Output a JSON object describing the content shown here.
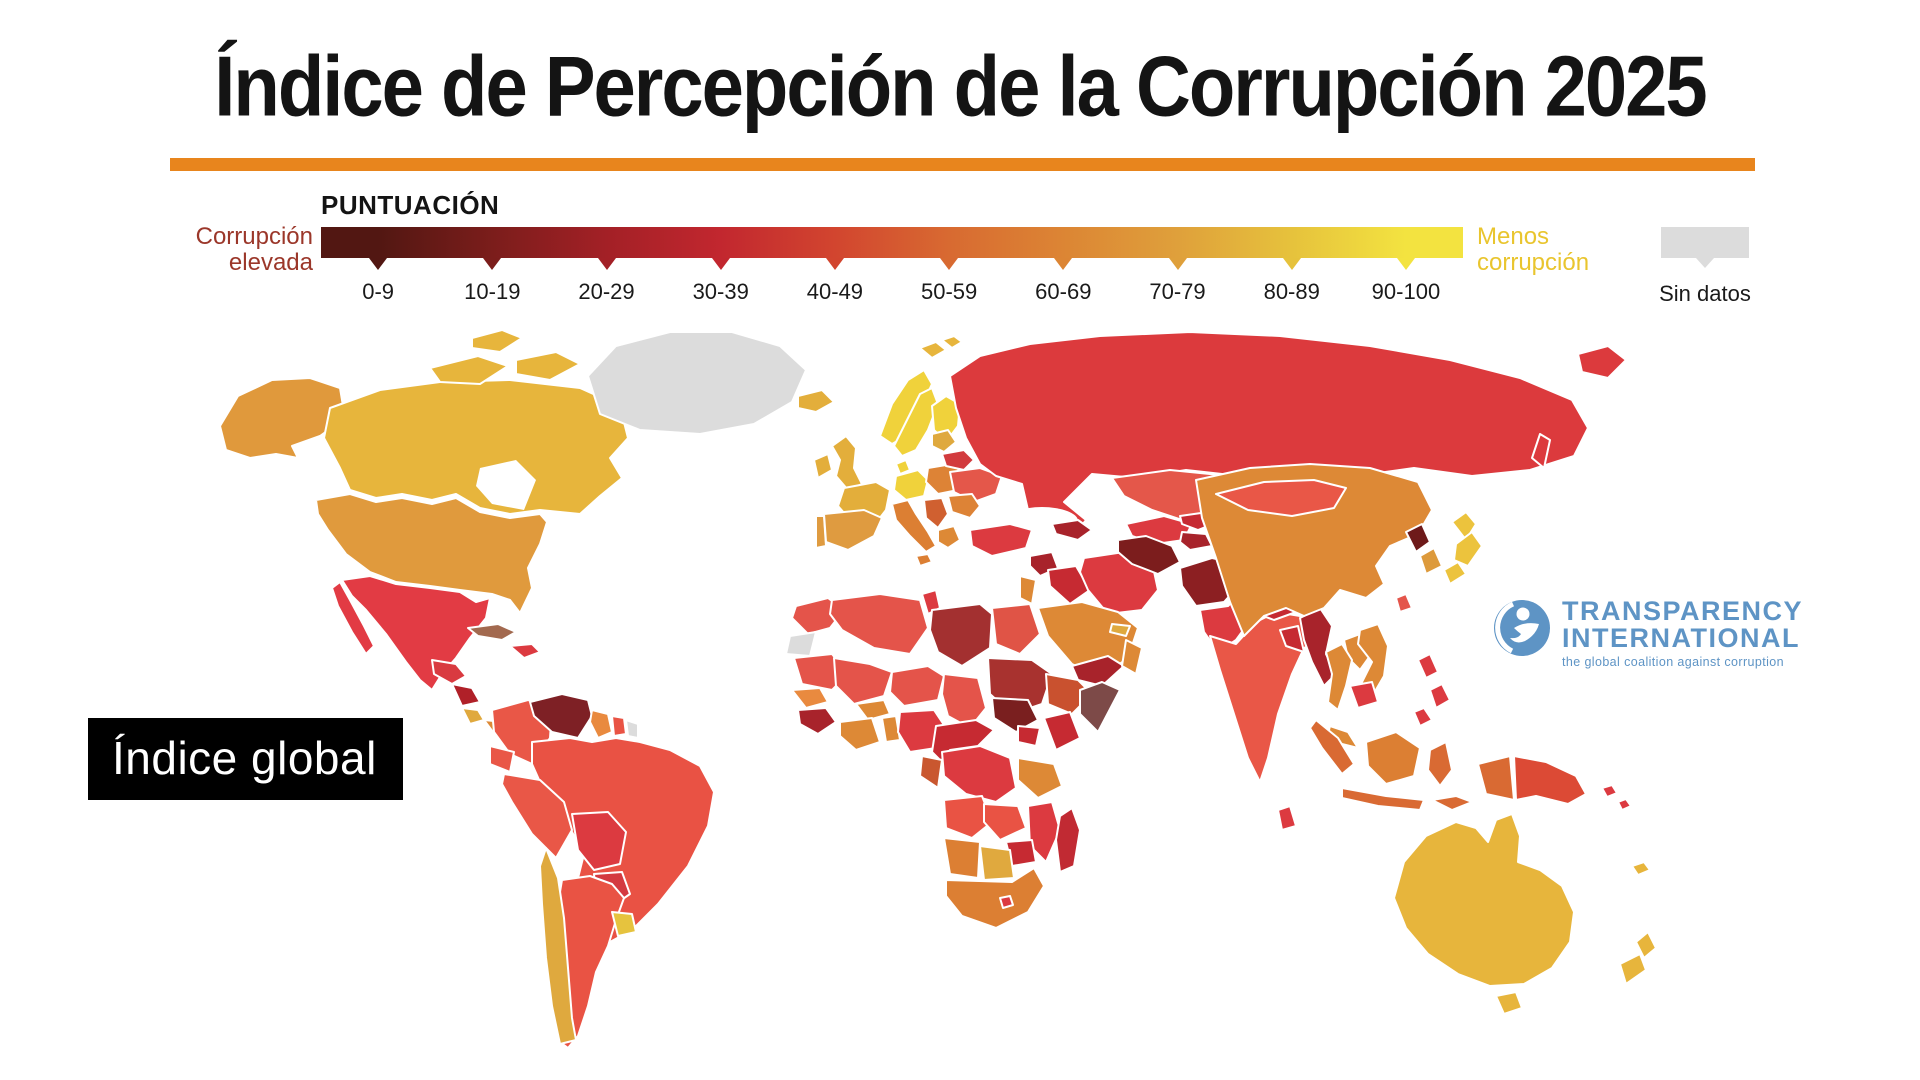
{
  "title": "Índice de Percepción de la Corrupción 2025",
  "accent_rule_color": "#e8851d",
  "legend": {
    "heading": "PUNTUACIÓN",
    "left_label": "Corrupción elevada",
    "left_label_color": "#9b372a",
    "right_label": "Menos corrupción",
    "right_label_color": "#e9c52e",
    "no_data_label": "Sin datos",
    "no_data_color": "#dcdcdc",
    "bands": [
      {
        "label": "0-9",
        "color": "#521712"
      },
      {
        "label": "10-19",
        "color": "#7b1d1b"
      },
      {
        "label": "20-29",
        "color": "#a32026"
      },
      {
        "label": "30-39",
        "color": "#c2272f"
      },
      {
        "label": "40-49",
        "color": "#d2452f"
      },
      {
        "label": "50-59",
        "color": "#d86a31"
      },
      {
        "label": "60-69",
        "color": "#dc8534"
      },
      {
        "label": "70-79",
        "color": "#dfa03b"
      },
      {
        "label": "80-89",
        "color": "#e6c23c"
      },
      {
        "label": "90-100",
        "color": "#f3e340"
      }
    ]
  },
  "badge": {
    "label": "Índice global"
  },
  "logo": {
    "line1": "TRANSPARENCY",
    "line2": "INTERNATIONAL",
    "tagline": "the global coalition against corruption",
    "color": "#5e94c5"
  },
  "map": {
    "colors": {
      "no_data": "#dcdcdc",
      "greenland": "#dcdcdc",
      "western_sahara": "#dcdcdc",
      "french_guiana": "#dcdcdc",
      "canada": "#e7b53c",
      "alaska": "#e0993c",
      "usa": "#e09a3d",
      "mexico": "#e23b44",
      "guatemala": "#d93a40",
      "nicaragua": "#b02028",
      "costa_rica": "#e0a93e",
      "panama": "#dd8936",
      "cuba": "#a2694f",
      "hispaniola": "#dc3a40",
      "colombia": "#e95747",
      "venezuela": "#7e2025",
      "guyana": "#e98a3f",
      "suriname": "#e95344",
      "ecuador": "#e95747",
      "peru": "#e95747",
      "brazil": "#e95244",
      "bolivia": "#dc3a40",
      "paraguay": "#d43a40",
      "chile": "#dfa93e",
      "argentina": "#e95344",
      "uruguay": "#e6c33e",
      "iceland": "#e3ae3b",
      "uk": "#e3ae3b",
      "ireland": "#e3ae3b",
      "norway": "#f0d23b",
      "sweden": "#f0d23b",
      "finland": "#f0d23b",
      "denmark": "#f0d23b",
      "germany": "#f0d23b",
      "france": "#e3ae3b",
      "spain": "#df9b40",
      "portugal": "#df9b40",
      "italy": "#dc7f33",
      "central_europe": "#dd8336",
      "balkans": "#d06030",
      "greece": "#dd8936",
      "romania_bulgaria": "#dd8336",
      "ukraine": "#e4574a",
      "belarus": "#d23b3e",
      "baltics": "#dfa93e",
      "svalbard": "#e7b53c",
      "russia": "#dc3a3d",
      "chukotka": "#dc3a3d",
      "sakhalin": "#dc3a3d",
      "turkey": "#dc3a40",
      "caucasus": "#a8232b",
      "syria": "#a8232b",
      "iraq": "#c62a32",
      "israel_jordan": "#dd8936",
      "saudi_arabia": "#dd8936",
      "yemen": "#a8232b",
      "oman": "#dd8936",
      "uae_qatar": "#dfa93e",
      "iran": "#dc3a40",
      "kazakhstan": "#e4574a",
      "uzbekistan": "#dc3a40",
      "turkmenistan": "#7c1d1d",
      "kyrgyzstan": "#c62a32",
      "tajikistan": "#a8232b",
      "afghanistan": "#8c1f22",
      "pakistan": "#dc3a40",
      "india": "#e95747",
      "nepal": "#c62a32",
      "bangladesh": "#c62a32",
      "sri_lanka": "#dc3a40",
      "myanmar": "#a8232b",
      "china": "#dd8936",
      "mongolia": "#e95747",
      "north_korea": "#6e1a1a",
      "south_korea": "#dd9a3c",
      "japan": "#ecc33d",
      "taiwan": "#e4554b",
      "thailand": "#dd8936",
      "laos": "#dd8936",
      "vietnam": "#dd8936",
      "cambodia": "#dc3a40",
      "malaysia": "#dd8936",
      "indonesia": "#d96a33",
      "borneo": "#dc7f33",
      "philippines": "#dc3a40",
      "papua_new_guinea": "#dc4a35",
      "solomon": "#dc3a40",
      "new_caledonia": "#e7b53c",
      "australia": "#e7b53c",
      "tasmania": "#e7b53c",
      "new_zealand": "#e7b53c",
      "morocco": "#e4544a",
      "algeria": "#e4544a",
      "tunisia": "#dc3a40",
      "libya": "#a33030",
      "egypt": "#e05446",
      "mauritania": "#e4544a",
      "mali": "#e4544a",
      "niger": "#e4544a",
      "chad": "#e4544a",
      "sudan": "#a8322f",
      "south_sudan": "#7a1f1f",
      "senegal": "#e98a3f",
      "guinea": "#a8232b",
      "ivory_coast_ghana": "#dd8936",
      "burkina_faso": "#dd8936",
      "togo_benin": "#dd8936",
      "nigeria": "#dc3a40",
      "cameroon_car": "#c62a32",
      "ethiopia": "#c9512f",
      "somalia": "#7d4a48",
      "kenya": "#c62a32",
      "uganda": "#c62a32",
      "drc": "#dc3a40",
      "gabon_congo": "#c9572f",
      "tanzania": "#dd8936",
      "angola": "#e95344",
      "zambia": "#e95344",
      "malawi": "#a8232b",
      "mozambique": "#dc3a40",
      "zimbabwe": "#c62a32",
      "namibia": "#dc7f33",
      "botswana": "#e0a93e",
      "south_africa": "#dc7f33",
      "lesotho": "#dc3a40",
      "madagascar": "#c12a33"
    }
  }
}
